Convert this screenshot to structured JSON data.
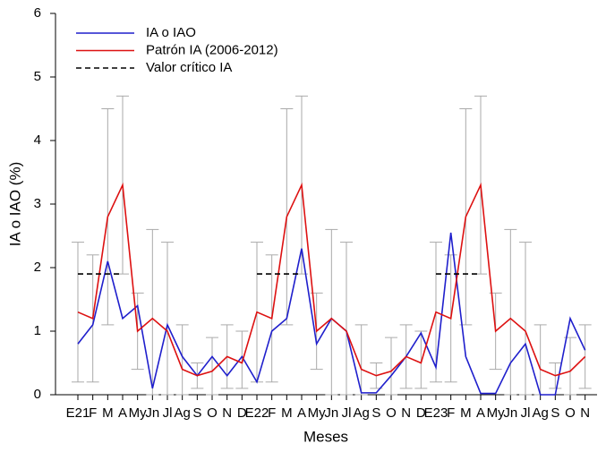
{
  "chart_data": {
    "type": "line",
    "categories": [
      "E21",
      "F",
      "M",
      "A",
      "My",
      "Jn",
      "Jl",
      "Ag",
      "S",
      "O",
      "N",
      "D",
      "E22",
      "F",
      "M",
      "A",
      "My",
      "Jn",
      "Jl",
      "Ag",
      "S",
      "O",
      "N",
      "D",
      "E23",
      "F",
      "M",
      "A",
      "My",
      "Jn",
      "Jl",
      "Ag",
      "S",
      "O",
      "N"
    ],
    "x_label": "Meses",
    "y_label": "IA o IAO (%)",
    "ylim": [
      0,
      6
    ],
    "yticks": [
      0,
      1,
      2,
      3,
      4,
      5,
      6
    ],
    "series": [
      {
        "name": "IA o IAO",
        "color": "#1f1fcc",
        "style": "solid",
        "values": [
          0.8,
          1.1,
          2.1,
          1.2,
          1.4,
          0.1,
          1.1,
          0.6,
          0.3,
          0.6,
          0.3,
          0.6,
          0.2,
          1.0,
          1.2,
          2.3,
          0.8,
          1.2,
          1.0,
          0.03,
          0.03,
          0.3,
          0.6,
          0.97,
          0.43,
          2.55,
          0.6,
          0.02,
          0.02,
          0.5,
          0.8,
          0.0,
          0.0,
          1.2,
          0.7
        ]
      },
      {
        "name": "Patrón IA (2006-2012)",
        "color": "#dd1111",
        "style": "solid",
        "values": [
          1.3,
          1.2,
          2.8,
          3.3,
          1.0,
          1.2,
          1.0,
          0.4,
          0.3,
          0.37,
          0.6,
          0.5,
          1.3,
          1.2,
          2.8,
          3.3,
          1.0,
          1.2,
          1.0,
          0.4,
          0.3,
          0.37,
          0.6,
          0.5,
          1.3,
          1.2,
          2.8,
          3.3,
          1.0,
          1.2,
          1.0,
          0.4,
          0.3,
          0.37,
          0.6
        ],
        "error_upper": [
          2.4,
          2.2,
          4.5,
          4.7,
          1.6,
          2.6,
          2.4,
          1.1,
          0.5,
          0.9,
          1.1,
          1.0,
          2.4,
          2.2,
          4.5,
          4.7,
          1.6,
          2.6,
          2.4,
          1.1,
          0.5,
          0.9,
          1.1,
          1.0,
          2.4,
          2.2,
          4.5,
          4.7,
          1.6,
          2.6,
          2.4,
          1.1,
          0.5,
          0.9,
          1.1
        ],
        "error_lower": [
          0.2,
          0.2,
          1.1,
          1.9,
          0.4,
          0,
          0,
          0,
          0.1,
          0,
          0.1,
          0.1,
          0.2,
          0.2,
          1.1,
          1.9,
          0.4,
          0,
          0,
          0,
          0.1,
          0,
          0.1,
          0.1,
          0.2,
          0.2,
          1.1,
          1.9,
          0.4,
          0,
          0,
          0,
          0.1,
          0,
          0.1
        ],
        "error_color": "#aaaaaa"
      },
      {
        "name": "Valor crítico IA",
        "color": "#000000",
        "style": "dashed",
        "values": [
          1.9,
          1.9,
          1.9,
          1.9,
          null,
          null,
          null,
          null,
          null,
          null,
          null,
          null,
          1.9,
          1.9,
          1.9,
          1.9,
          null,
          null,
          null,
          null,
          null,
          null,
          null,
          null,
          1.9,
          1.9,
          1.9,
          1.9,
          null,
          null,
          null,
          null,
          null,
          null,
          null
        ]
      }
    ]
  }
}
